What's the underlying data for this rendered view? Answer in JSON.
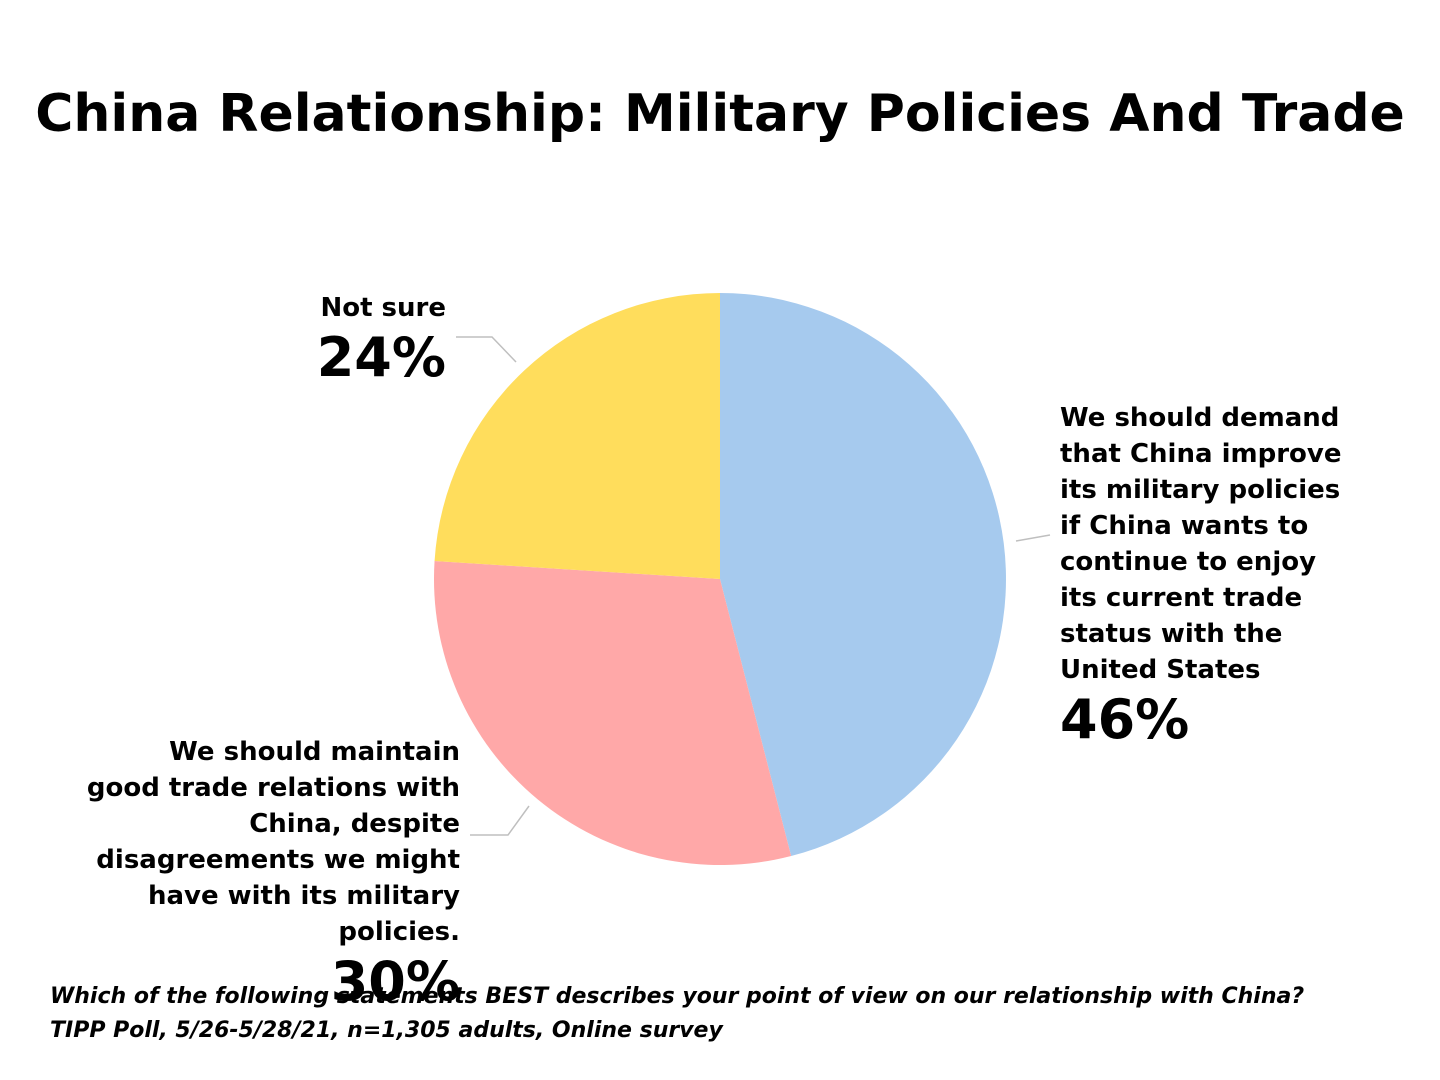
{
  "title": "China Relationship:  Military Policies And Trade",
  "chart_data": {
    "type": "pie",
    "title": "China Relationship:  Military Policies And Trade",
    "slices": [
      {
        "label": "We should demand\nthat China improve\nits military policies\nif China wants to\ncontinue to enjoy\nits current trade\nstatus with the\nUnited States",
        "value": 46,
        "value_label": "46%",
        "color": "#A6CAEE"
      },
      {
        "label": "We should maintain\ngood trade relations with\nChina, despite\ndisagreements we might\nhave with its military\npolicies.",
        "value": 30,
        "value_label": "30%",
        "color": "#FFA8A8"
      },
      {
        "label": "Not sure",
        "value": 24,
        "value_label": "24%",
        "color": "#FFDD5C"
      }
    ],
    "start_angle": "12 o'clock",
    "direction": "clockwise"
  },
  "footnotes": {
    "question": "Which of the following statements BEST describes your point of view on our relationship with China?",
    "source": "TIPP Poll, 5/26-5/28/21, n=1,305 adults, Online survey"
  },
  "colors": {
    "leader_line": "#BFBFBF",
    "text": "#000000",
    "background": "#FFFFFF"
  }
}
